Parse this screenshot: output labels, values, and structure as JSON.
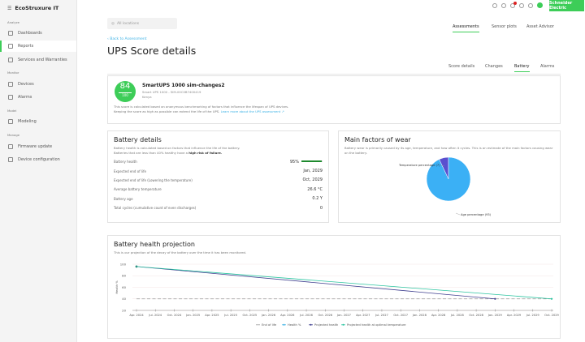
{
  "sidebar": {
    "logo": "EcoStruxure IT",
    "sections": [
      {
        "label": "Analyze",
        "items": [
          "Dashboards",
          "Reports",
          "Services and Warranties"
        ]
      },
      {
        "label": "Monitor",
        "items": [
          "Devices",
          "Alarms"
        ]
      },
      {
        "label": "Model",
        "items": [
          "Modeling"
        ]
      },
      {
        "label": "Manage",
        "items": [
          "Firmware update",
          "Device configuration"
        ]
      }
    ],
    "active": "Reports"
  },
  "topbar": {
    "icons": [
      "search-icon",
      "help-icon",
      "bell-icon",
      "lightbulb-icon",
      "settings-icon",
      "user-avatar"
    ],
    "notification_count": "1",
    "brand": "Schneider Electric",
    "brand_color": "#3dcd58"
  },
  "location": {
    "placeholder": "All locations"
  },
  "main_tabs": [
    {
      "label": "Assessments",
      "active": true
    },
    {
      "label": "Sensor plots"
    },
    {
      "label": "Asset Advisor"
    }
  ],
  "back_link": "Back to Assessment",
  "page_title": "UPS Score details",
  "sub_tabs": [
    {
      "label": "Score details"
    },
    {
      "label": "Changes"
    },
    {
      "label": "Battery",
      "active": true
    },
    {
      "label": "Alarms"
    }
  ],
  "score_card": {
    "score": "84",
    "max": "100",
    "device_name": "SmartUPS 1000 sim-changes2",
    "device_model": "Smart UPS 1000 - SIM-00C0B7400419",
    "location": "Kenya",
    "description": "This score is calculated based on anonymous benchmarking of factors that influence the lifespan of UPS devices.",
    "description2": "Keeping the score as high as possible can extend the life of the UPS.",
    "link": "Learn more about the UPS assessment"
  },
  "battery_details": {
    "title": "Battery details",
    "desc1": "Battery health is calculated based on factors that influence the life of the battery.",
    "desc2": "Batteries that are less than 40% healthy have a ",
    "desc2_bold": "high risk of failure.",
    "health_percent": 95,
    "rows": [
      {
        "label": "Battery health",
        "value": "95%"
      },
      {
        "label": "Expected end of life",
        "value": "Jan, 2029"
      },
      {
        "label": "Expected end of life (Lowering the temperature)",
        "value": "Oct, 2029"
      },
      {
        "label": "Average battery temperature",
        "value": "26.6 °C"
      },
      {
        "label": "Battery age",
        "value": "0.2 Y"
      },
      {
        "label": "Total cycles (cumulative count of even discharges)",
        "value": "0"
      }
    ]
  },
  "wear": {
    "title": "Main factors of wear",
    "desc": "Battery wear is primarily caused by its age, temperature, and how often it cycles. This is an estimate of the main factors causing wear on the battery.",
    "chart_data": {
      "type": "pie",
      "slices": [
        {
          "label": "Temperature percentage (7)",
          "value": 7,
          "color": "#5a4fcf"
        },
        {
          "label": "Age percentage (93)",
          "value": 93,
          "color": "#3bb0f5"
        }
      ]
    }
  },
  "projection": {
    "title": "Battery health projection",
    "desc": "This is our projection of the decay of the battery over the time it has been monitored.",
    "chart_data": {
      "type": "line",
      "ylabel": "Health %",
      "ylim": [
        20,
        100
      ],
      "yticks": [
        20,
        40,
        60,
        80,
        100
      ],
      "grid": true,
      "legend": "bottom",
      "xticks": [
        "Apr. 2024",
        "Jul. 2024",
        "Oct. 2024",
        "Jan. 2025",
        "Apr. 2025",
        "Jul. 2025",
        "Oct. 2025",
        "Jan. 2026",
        "Apr. 2026",
        "Jul. 2026",
        "Oct. 2026",
        "Jan. 2027",
        "Apr. 2027",
        "Jul. 2027",
        "Oct. 2027",
        "Jan. 2028",
        "Apr. 2028",
        "Jul. 2028",
        "Oct. 2028",
        "Jan. 2029",
        "Apr. 2029",
        "Jul. 2029",
        "Oct. 2029"
      ],
      "series": [
        {
          "name": "End of life",
          "color": "#999999",
          "dashed": true,
          "points": [
            [
              "Apr. 2024",
              40
            ],
            [
              "Oct. 2029",
              40
            ]
          ]
        },
        {
          "name": "Health %",
          "color": "#42b4e6",
          "points": [
            [
              "Apr. 2024",
              96
            ]
          ]
        },
        {
          "name": "Projected health",
          "color": "#3f3f8f",
          "points": [
            [
              "Apr. 2024",
              96
            ],
            [
              "Jan. 2029",
              40
            ]
          ]
        },
        {
          "name": "Projected health at optimal temperature",
          "color": "#2bc4a0",
          "points": [
            [
              "Apr. 2024",
              96
            ],
            [
              "Oct. 2029",
              40
            ]
          ]
        }
      ]
    }
  }
}
